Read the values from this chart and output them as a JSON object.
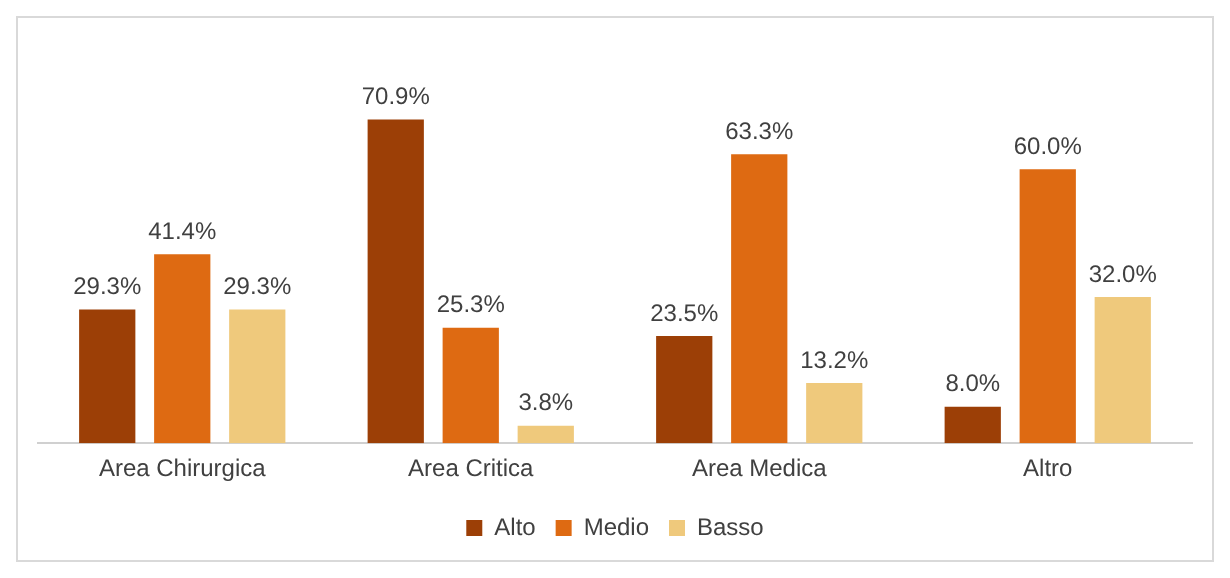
{
  "chart_data": {
    "type": "bar",
    "categories": [
      "Area Chirurgica",
      "Area Critica",
      "Area Medica",
      "Altro"
    ],
    "series": [
      {
        "name": "Alto",
        "color": "#9c3f06",
        "values": [
          29.3,
          70.9,
          23.5,
          8.0
        ],
        "value_labels": [
          "29.3%",
          "70.9%",
          "23.5%",
          "8.0%"
        ]
      },
      {
        "name": "Medio",
        "color": "#de6a12",
        "values": [
          41.4,
          25.3,
          63.3,
          60.0
        ],
        "value_labels": [
          "41.4%",
          "25.3%",
          "63.3%",
          "60.0%"
        ]
      },
      {
        "name": "Basso",
        "color": "#efc97c",
        "values": [
          29.3,
          3.8,
          13.2,
          32.0
        ],
        "value_labels": [
          "29.3%",
          "3.8%",
          "13.2%",
          "32.0%"
        ]
      }
    ],
    "legend": "bottom"
  }
}
